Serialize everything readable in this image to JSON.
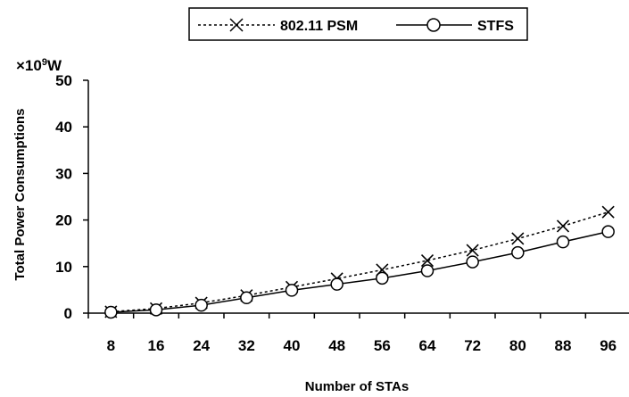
{
  "chart_data": {
    "type": "line",
    "title": "",
    "xlabel": "Number of STAs",
    "ylabel": "Total Power Consumptions",
    "y_unit_prefix": "×10",
    "y_unit_exponent": "9",
    "y_unit_suffix": "W",
    "ylim": [
      0,
      50
    ],
    "yticks": [
      0,
      10,
      20,
      30,
      40,
      50
    ],
    "categories": [
      "8",
      "16",
      "24",
      "32",
      "40",
      "48",
      "56",
      "64",
      "72",
      "80",
      "88",
      "96"
    ],
    "series": [
      {
        "name": "802.11 PSM",
        "marker": "x",
        "line_style": "dotted",
        "color": "#000000",
        "values": [
          0.3,
          1.0,
          2.2,
          3.8,
          5.6,
          7.4,
          9.3,
          11.3,
          13.5,
          16.0,
          18.7,
          21.7
        ]
      },
      {
        "name": "STFS",
        "marker": "circle",
        "line_style": "solid",
        "color": "#000000",
        "values": [
          0.2,
          0.7,
          1.7,
          3.3,
          4.9,
          6.2,
          7.5,
          9.1,
          11.0,
          13.0,
          15.3,
          17.5
        ]
      }
    ],
    "legend_position": "top-center",
    "grid": false
  }
}
